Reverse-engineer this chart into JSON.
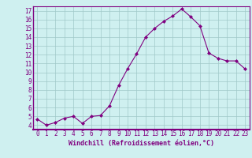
{
  "x": [
    0,
    1,
    2,
    3,
    4,
    5,
    6,
    7,
    8,
    9,
    10,
    11,
    12,
    13,
    14,
    15,
    16,
    17,
    18,
    19,
    20,
    21,
    22,
    23
  ],
  "y": [
    4.7,
    4.0,
    4.3,
    4.8,
    5.0,
    4.2,
    5.0,
    5.1,
    6.2,
    8.5,
    10.4,
    12.1,
    14.0,
    15.0,
    15.8,
    16.4,
    17.2,
    16.3,
    15.3,
    12.2,
    11.6,
    11.3,
    11.3,
    10.4
  ],
  "line_color": "#800080",
  "marker": "D",
  "marker_size": 2.0,
  "bg_color": "#cff0f0",
  "grid_color": "#a0c8c8",
  "xlabel": "Windchill (Refroidissement éolien,°C)",
  "ylabel_ticks": [
    4,
    5,
    6,
    7,
    8,
    9,
    10,
    11,
    12,
    13,
    14,
    15,
    16,
    17
  ],
  "xlim": [
    -0.5,
    23.5
  ],
  "ylim": [
    3.5,
    17.5
  ],
  "xticks": [
    0,
    1,
    2,
    3,
    4,
    5,
    6,
    7,
    8,
    9,
    10,
    11,
    12,
    13,
    14,
    15,
    16,
    17,
    18,
    19,
    20,
    21,
    22,
    23
  ],
  "label_color": "#800080",
  "tick_fontsize": 5.5,
  "xlabel_fontsize": 6.0
}
